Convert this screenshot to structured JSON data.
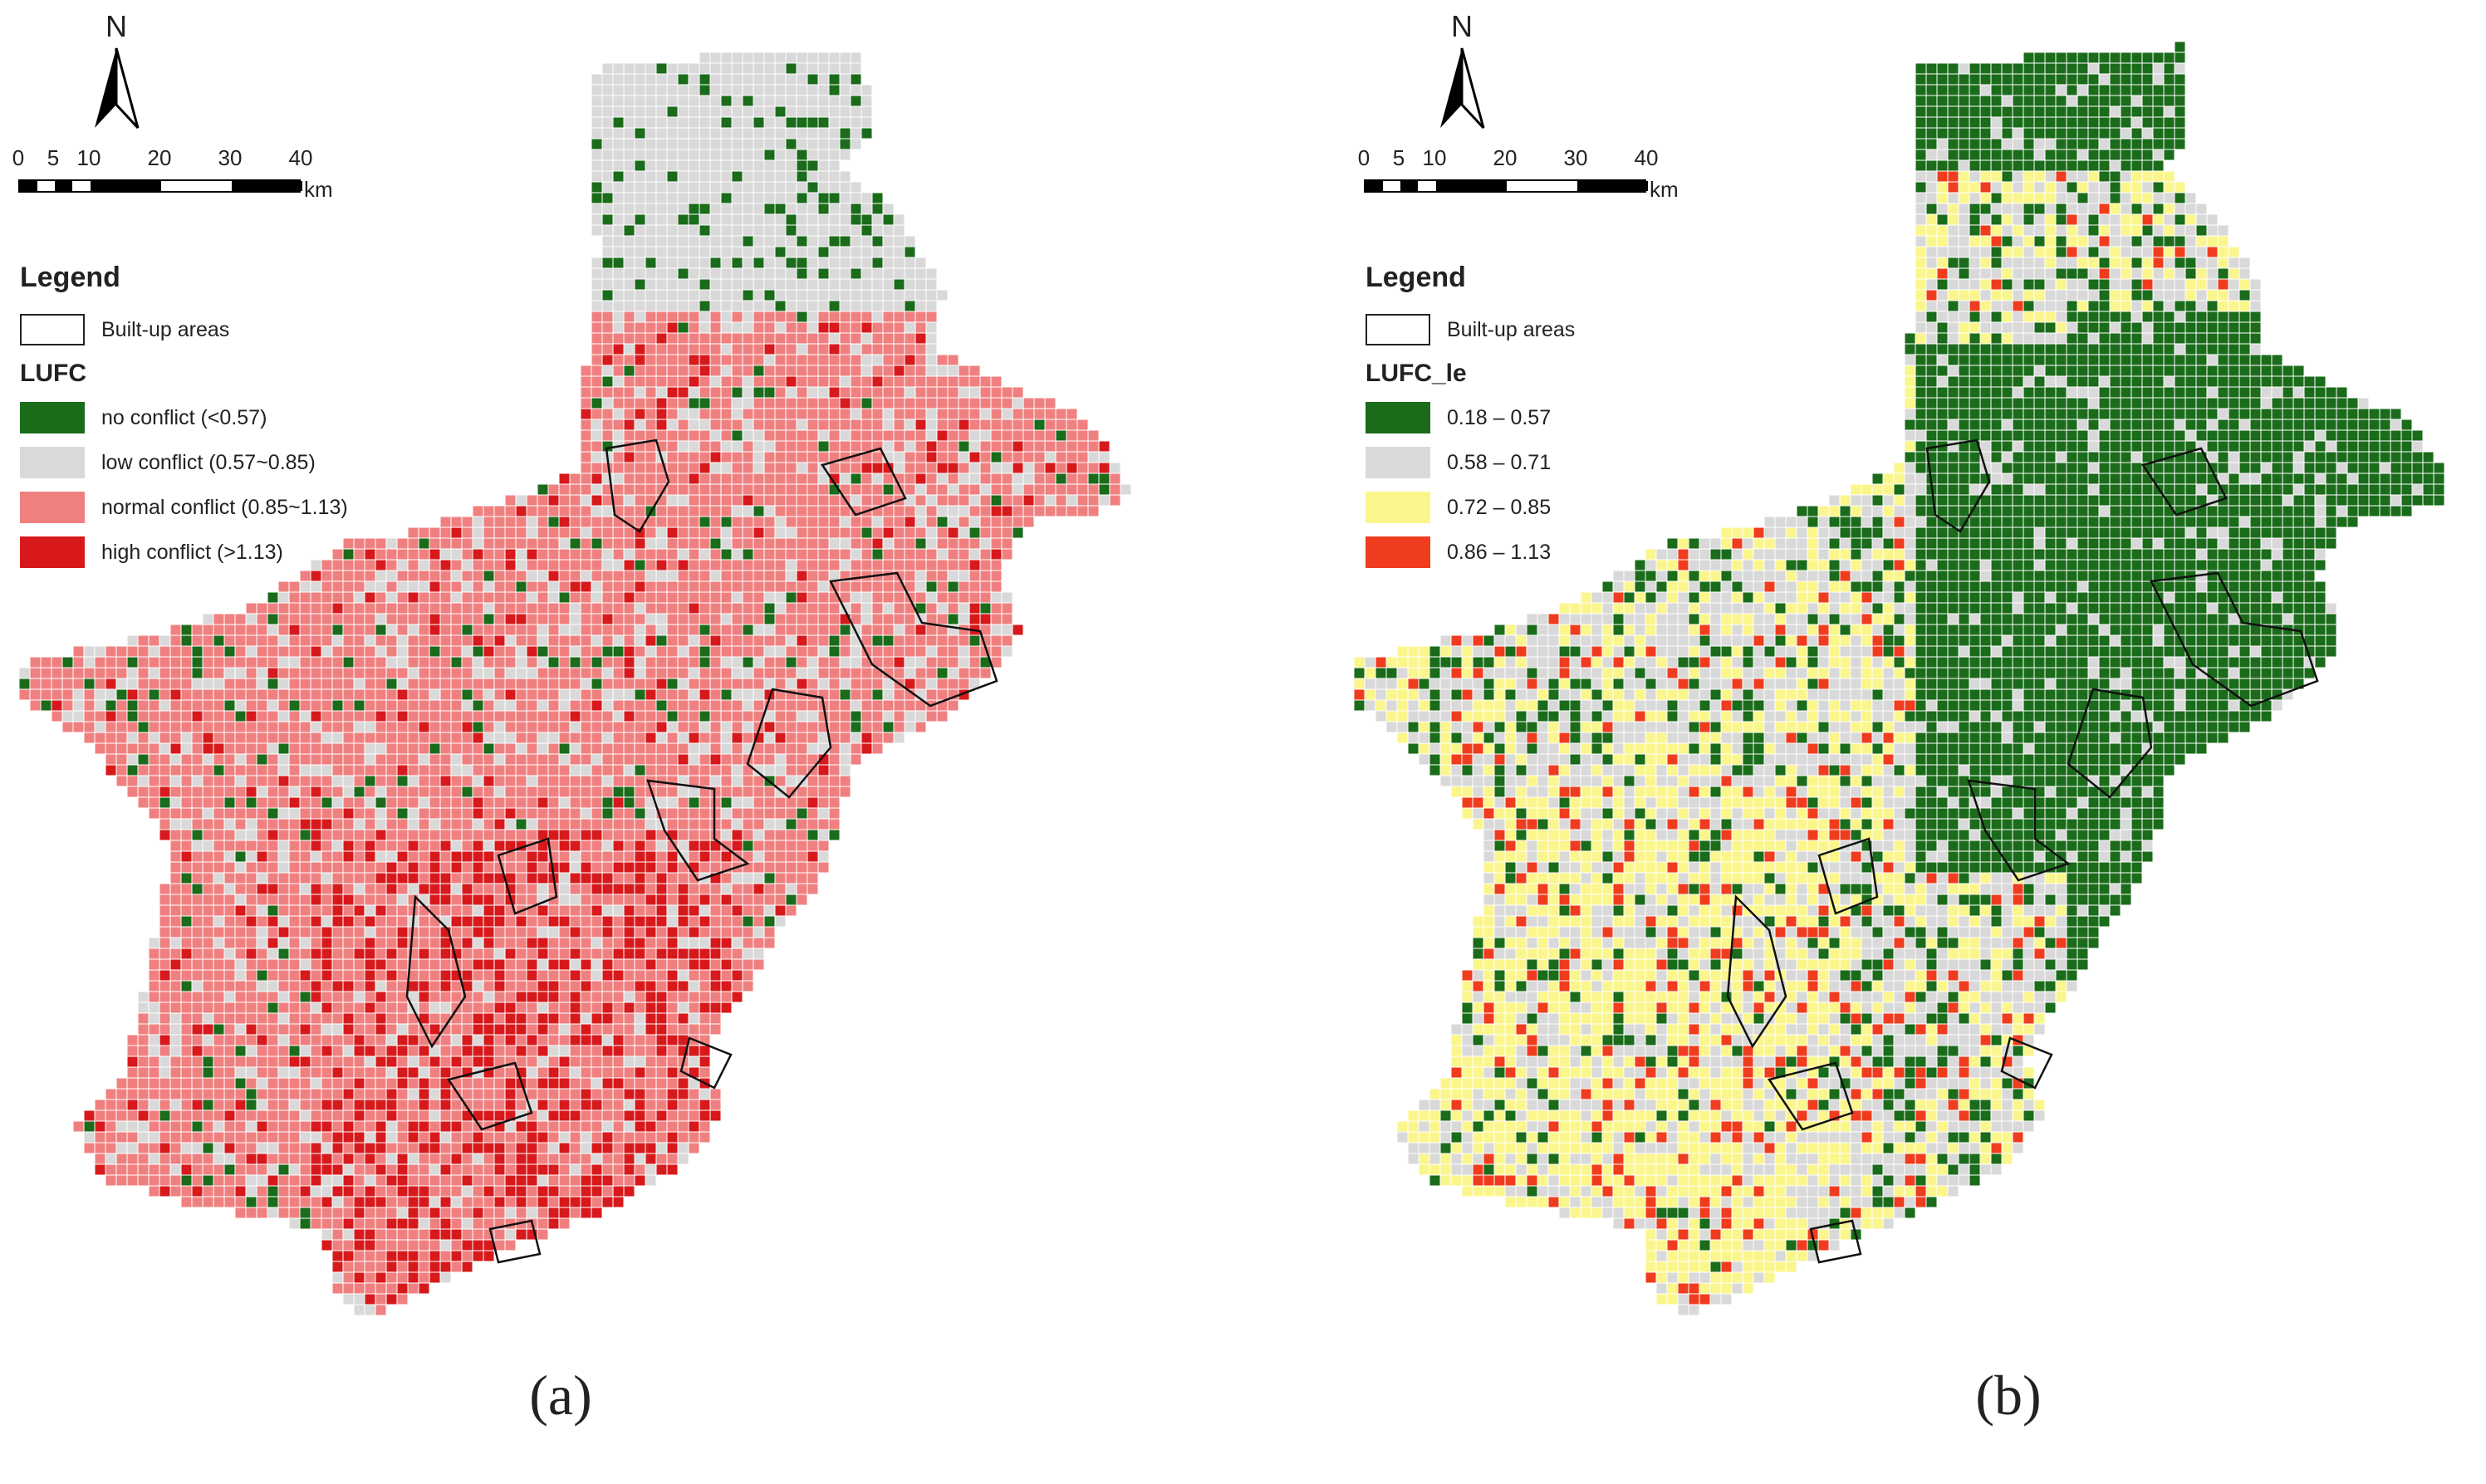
{
  "panels": [
    {
      "caption": "(a)",
      "north_label": "N",
      "scale": {
        "ticks": [
          "0",
          "5",
          "10",
          "20",
          "30",
          "40"
        ],
        "unit": "km"
      },
      "legend": {
        "title": "Legend",
        "boundary_label": "Built-up areas",
        "subtitle": "LUFC",
        "classes": [
          {
            "label": "no conflict (<0.57)",
            "color": "#1a6b1a"
          },
          {
            "label": "low conflict (0.57~0.85)",
            "color": "#d9d9d9"
          },
          {
            "label": "normal conflict (0.85~1.13)",
            "color": "#f08080"
          },
          {
            "label": "high conflict (>1.13)",
            "color": "#d7191c"
          }
        ]
      }
    },
    {
      "caption": "(b)",
      "north_label": "N",
      "scale": {
        "ticks": [
          "0",
          "5",
          "10",
          "20",
          "30",
          "40"
        ],
        "unit": "km"
      },
      "legend": {
        "title": "Legend",
        "boundary_label": "Built-up areas",
        "subtitle": "LUFC_le",
        "classes": [
          {
            "label": "0.18 – 0.57",
            "color": "#1a6b1a"
          },
          {
            "label": "0.58 – 0.71",
            "color": "#d9d9d9"
          },
          {
            "label": "0.72 – 0.85",
            "color": "#fbf68c"
          },
          {
            "label": "0.86 – 1.13",
            "color": "#f03c1e"
          }
        ]
      }
    }
  ]
}
